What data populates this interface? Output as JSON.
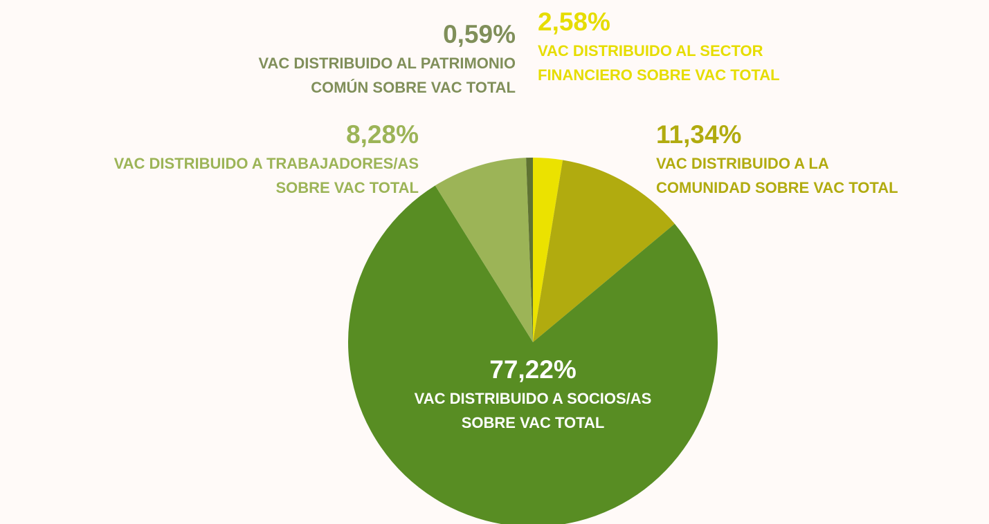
{
  "chart_data": {
    "type": "pie",
    "categories": [
      "VAC DISTRIBUIDO AL SECTOR\nFINANCIERO  SOBRE VAC TOTAL",
      "VAC DISTRIBUIDO A LA\nCOMUNIDAD SOBRE VAC  TOTAL",
      "VAC DISTRIBUIDO A SOCIOS/AS\nSOBRE VAC  TOTAL",
      "VAC DISTRIBUIDO A TRABAJADORES/AS\nSOBRE VAC TOTAL",
      "VAC DISTRIBUIDO AL PATRIMONIO\nCOMÚN SOBRE VAC TOTAL"
    ],
    "values": [
      2.58,
      11.34,
      77.22,
      8.28,
      0.59
    ],
    "value_labels": [
      "2,58%",
      "11,34%",
      "77,22%",
      "8,28%",
      "0,59%"
    ],
    "colors": [
      "#ebe200",
      "#b1ab0f",
      "#588d23",
      "#9cb457",
      "#5f7232"
    ],
    "label_colors": [
      "#e6dd00",
      "#b1ab0f",
      "#ffffff",
      "#9cb457",
      "#808f5a"
    ]
  }
}
